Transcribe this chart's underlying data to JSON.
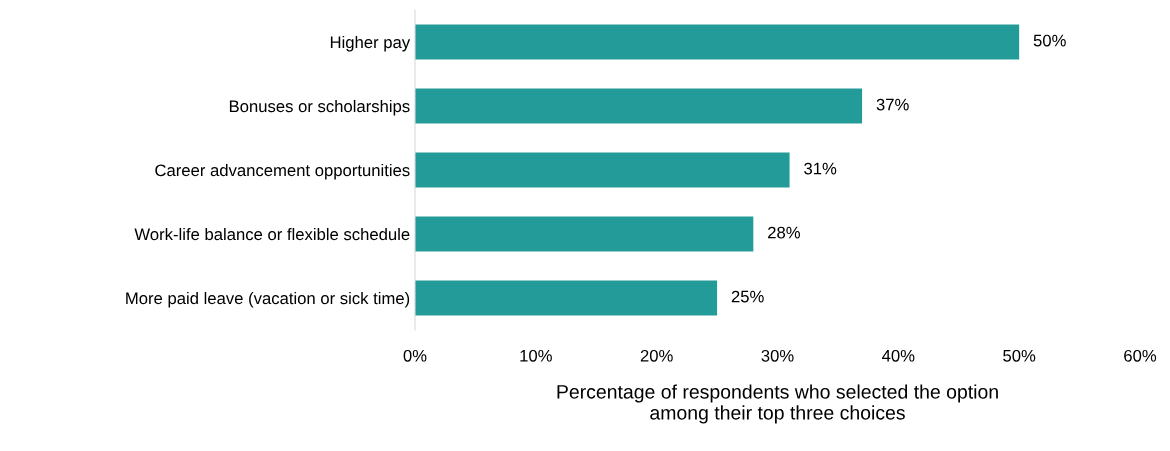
{
  "chart_data": {
    "type": "bar",
    "orientation": "horizontal",
    "categories": [
      "Higher pay",
      "Bonuses or scholarships",
      "Career advancement opportunities",
      "Work-life balance or flexible schedule",
      "More paid leave (vacation or sick time)"
    ],
    "values": [
      50,
      37,
      31,
      28,
      25
    ],
    "color": "#239b98",
    "data_labels": true,
    "value_labels": [
      "50%",
      "37%",
      "31%",
      "28%",
      "25%"
    ],
    "xlabel": "Percentage of respondents who selected the option\namong their top three choices",
    "xlim": [
      0,
      60
    ],
    "xticks": [
      {
        "value": 0,
        "label": "0%"
      },
      {
        "value": 10,
        "label": "10%"
      },
      {
        "value": 20,
        "label": "20%"
      },
      {
        "value": 30,
        "label": "30%"
      },
      {
        "value": 40,
        "label": "40%"
      },
      {
        "value": 50,
        "label": "50%"
      },
      {
        "value": 60,
        "label": "60%"
      }
    ],
    "grid": false,
    "legend": false
  }
}
